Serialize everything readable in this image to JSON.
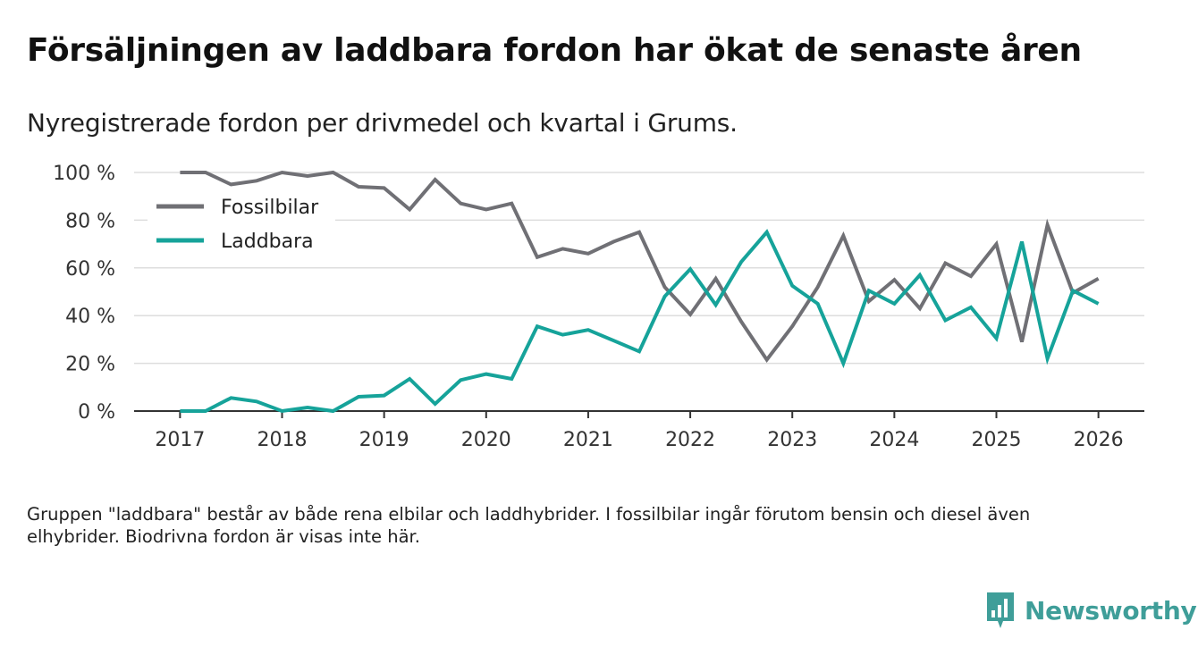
{
  "title": "Försäljningen av laddbara fordon har ökat de senaste åren",
  "subtitle": "Nyregistrerade fordon per drivmedel och kvartal i Grums.",
  "footnote": "Gruppen \"laddbara\" består av både rena elbilar och laddhybrider. I fossilbilar ingår förutom bensin och diesel även elhybrider. Biodrivna fordon är visas inte här.",
  "brand": "Newsworthy",
  "colors": {
    "fossil": "#707075",
    "laddbara": "#16a39a",
    "grid": "#dddddd",
    "axis": "#333333",
    "brand": "#3f9e99"
  },
  "chart_data": {
    "type": "line",
    "x_start": 2017.0,
    "x_step": 0.25,
    "xlim": [
      2016.55,
      2026.45
    ],
    "ylim": [
      0,
      100
    ],
    "x_ticks": [
      2017,
      2018,
      2019,
      2020,
      2021,
      2022,
      2023,
      2024,
      2025,
      2026
    ],
    "x_tick_labels": [
      "2017",
      "2018",
      "2019",
      "2020",
      "2021",
      "2022",
      "2023",
      "2024",
      "2025",
      "2026"
    ],
    "y_ticks": [
      0,
      20,
      40,
      60,
      80,
      100
    ],
    "y_tick_labels": [
      "0 %",
      "20 %",
      "40 %",
      "60 %",
      "80 %",
      "100 %"
    ],
    "legend_position": "top-left",
    "series": [
      {
        "name": "Fossilbilar",
        "color": "#707075",
        "values": [
          100,
          100,
          95,
          96.5,
          100,
          98.5,
          100,
          94,
          93.5,
          84.5,
          97,
          87,
          84.5,
          87,
          64.5,
          68,
          66,
          71,
          75,
          52,
          40.5,
          55.5,
          37.5,
          21.5,
          35.5,
          52,
          73.5,
          46,
          55,
          43,
          62,
          56.5,
          70,
          29,
          78,
          49.5,
          55.5
        ]
      },
      {
        "name": "Laddbara",
        "color": "#16a39a",
        "values": [
          0,
          0,
          5.5,
          4,
          0,
          1.5,
          0,
          6,
          6.5,
          13.5,
          3,
          13,
          15.5,
          13.5,
          35.5,
          32,
          34,
          29.5,
          25,
          48,
          59.5,
          44.5,
          62.5,
          75,
          52.5,
          45,
          20,
          50.5,
          45,
          57,
          38,
          43.5,
          30.5,
          71,
          22,
          50.5,
          45
        ]
      }
    ]
  }
}
